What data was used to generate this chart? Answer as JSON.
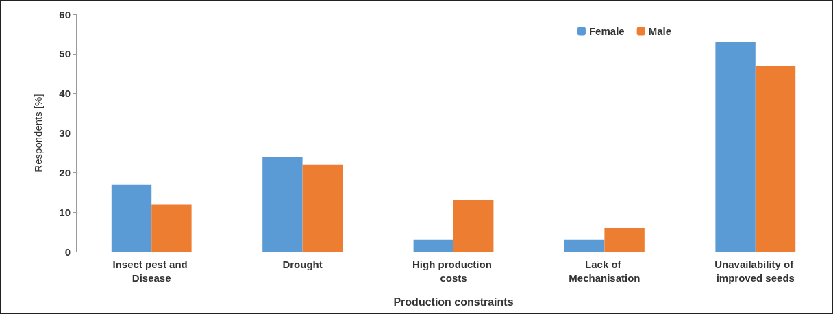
{
  "chart_data": {
    "type": "bar",
    "categories": [
      "Insect pest and Disease",
      "Drought",
      "High production costs",
      "Lack of Mechanisation",
      "Unavailability of improved seeds"
    ],
    "series": [
      {
        "name": "Female",
        "color": "#5b9bd5",
        "values": [
          17,
          24,
          3,
          3,
          53
        ]
      },
      {
        "name": "Male",
        "color": "#ed7d31",
        "values": [
          12,
          22,
          13,
          6,
          47
        ]
      }
    ],
    "xlabel": "Production constraints",
    "ylabel": "Respondents [%]",
    "ylim": [
      0,
      60
    ],
    "yticks": [
      0,
      10,
      20,
      30,
      40,
      50,
      60
    ],
    "grid": false,
    "legend": "top right"
  }
}
